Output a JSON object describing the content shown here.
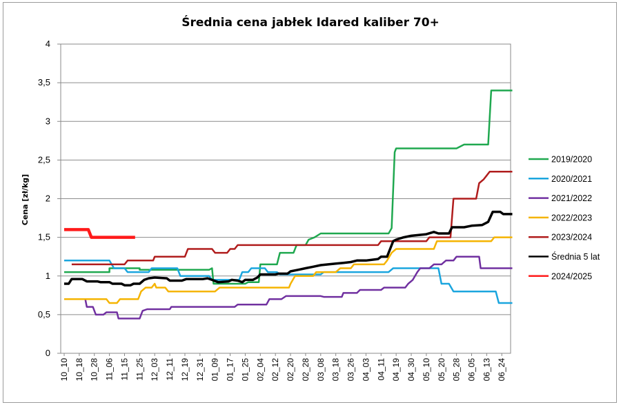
{
  "chart_data": {
    "type": "line",
    "title": "Średnia cena jabłek Idared kaliber 70+",
    "xlabel": "",
    "ylabel": "Cena [zł/kg]",
    "ylim": [
      0,
      4
    ],
    "yticks": [
      "0",
      "0,5",
      "1",
      "1,5",
      "2",
      "2,5",
      "3",
      "3,5",
      "4"
    ],
    "categories": [
      "10_10",
      "10_18",
      "10_28",
      "11_06",
      "11_15",
      "11_25",
      "12_03",
      "12_11",
      "12_19",
      "12_31",
      "01_09",
      "01_17",
      "01_25",
      "02_04",
      "02_12",
      "02_20",
      "02_28",
      "03_08",
      "03_18",
      "03_26",
      "04_03",
      "04_11",
      "04_19",
      "04_30",
      "05_10",
      "05_20",
      "05_28",
      "06_05",
      "06_13",
      "06_24"
    ],
    "grid": "horizontal",
    "legend_position": "right",
    "series": [
      {
        "name": "2019/2020",
        "color": "#1fa84f",
        "width": 2.5,
        "points": [
          [
            0,
            1.05
          ],
          [
            3,
            1.05
          ],
          [
            3,
            1.1
          ],
          [
            5,
            1.1
          ],
          [
            5,
            1.08
          ],
          [
            9.6,
            1.08
          ],
          [
            9.8,
            1.1
          ],
          [
            9.9,
            0.9
          ],
          [
            12,
            0.9
          ],
          [
            12.2,
            0.92
          ],
          [
            12.9,
            0.92
          ],
          [
            13,
            1.15
          ],
          [
            14.1,
            1.15
          ],
          [
            14.3,
            1.3
          ],
          [
            15.2,
            1.3
          ],
          [
            15.4,
            1.4
          ],
          [
            16,
            1.4
          ],
          [
            16.2,
            1.47
          ],
          [
            16.6,
            1.5
          ],
          [
            17,
            1.55
          ],
          [
            21.5,
            1.55
          ],
          [
            21.7,
            1.62
          ],
          [
            21.9,
            2.6
          ],
          [
            22,
            2.65
          ],
          [
            26,
            2.65
          ],
          [
            26.5,
            2.7
          ],
          [
            28.1,
            2.7
          ],
          [
            28.3,
            3.4
          ],
          [
            29.7,
            3.4
          ]
        ]
      },
      {
        "name": "2020/2021",
        "color": "#1aa5de",
        "width": 2.5,
        "points": [
          [
            0,
            1.2
          ],
          [
            3,
            1.2
          ],
          [
            3.3,
            1.1
          ],
          [
            4,
            1.1
          ],
          [
            4.2,
            1.05
          ],
          [
            5.6,
            1.05
          ],
          [
            5.8,
            1.1
          ],
          [
            7.5,
            1.1
          ],
          [
            7.7,
            1.0
          ],
          [
            9.6,
            1.0
          ],
          [
            9.8,
            0.95
          ],
          [
            11.6,
            0.95
          ],
          [
            11.8,
            1.05
          ],
          [
            12.2,
            1.05
          ],
          [
            12.4,
            1.1
          ],
          [
            13.3,
            1.1
          ],
          [
            13.5,
            1.05
          ],
          [
            14.1,
            1.05
          ],
          [
            14.3,
            1.02
          ],
          [
            17,
            1.02
          ],
          [
            17.2,
            1.05
          ],
          [
            21.5,
            1.05
          ],
          [
            21.8,
            1.1
          ],
          [
            24.8,
            1.1
          ],
          [
            25,
            0.9
          ],
          [
            25.5,
            0.9
          ],
          [
            25.8,
            0.8
          ],
          [
            28.6,
            0.8
          ],
          [
            28.8,
            0.65
          ],
          [
            29.7,
            0.65
          ]
        ]
      },
      {
        "name": "2021/2022",
        "color": "#7030a0",
        "width": 2.5,
        "points": [
          [
            1.4,
            0.7
          ],
          [
            1.5,
            0.6
          ],
          [
            1.9,
            0.6
          ],
          [
            2.1,
            0.5
          ],
          [
            2.6,
            0.5
          ],
          [
            2.8,
            0.53
          ],
          [
            3.5,
            0.53
          ],
          [
            3.6,
            0.45
          ],
          [
            5,
            0.45
          ],
          [
            5.2,
            0.55
          ],
          [
            5.5,
            0.57
          ],
          [
            7,
            0.57
          ],
          [
            7.1,
            0.6
          ],
          [
            11.3,
            0.6
          ],
          [
            11.5,
            0.63
          ],
          [
            13.4,
            0.63
          ],
          [
            13.6,
            0.7
          ],
          [
            14.4,
            0.7
          ],
          [
            14.7,
            0.74
          ],
          [
            17,
            0.74
          ],
          [
            17.2,
            0.73
          ],
          [
            18.4,
            0.73
          ],
          [
            18.5,
            0.78
          ],
          [
            19.4,
            0.78
          ],
          [
            19.6,
            0.82
          ],
          [
            21,
            0.82
          ],
          [
            21.2,
            0.85
          ],
          [
            22.6,
            0.85
          ],
          [
            22.8,
            0.9
          ],
          [
            23.1,
            0.95
          ],
          [
            23.4,
            1.05
          ],
          [
            23.6,
            1.1
          ],
          [
            24.2,
            1.1
          ],
          [
            24.5,
            1.15
          ],
          [
            25,
            1.15
          ],
          [
            25.3,
            1.2
          ],
          [
            25.8,
            1.2
          ],
          [
            26,
            1.25
          ],
          [
            27.5,
            1.25
          ],
          [
            27.6,
            1.1
          ],
          [
            29.7,
            1.1
          ]
        ]
      },
      {
        "name": "2022/2023",
        "color": "#f5b400",
        "width": 2.5,
        "points": [
          [
            0,
            0.7
          ],
          [
            2.8,
            0.7
          ],
          [
            3,
            0.65
          ],
          [
            3.5,
            0.65
          ],
          [
            3.7,
            0.7
          ],
          [
            4.9,
            0.7
          ],
          [
            5.1,
            0.8
          ],
          [
            5.4,
            0.85
          ],
          [
            5.8,
            0.85
          ],
          [
            6,
            0.9
          ],
          [
            6.1,
            0.85
          ],
          [
            6.7,
            0.85
          ],
          [
            6.9,
            0.8
          ],
          [
            10,
            0.8
          ],
          [
            10.3,
            0.85
          ],
          [
            14.9,
            0.85
          ],
          [
            15,
            0.9
          ],
          [
            15.3,
            1.0
          ],
          [
            16.5,
            1.0
          ],
          [
            16.7,
            1.05
          ],
          [
            18,
            1.05
          ],
          [
            18.3,
            1.1
          ],
          [
            19,
            1.1
          ],
          [
            19.2,
            1.15
          ],
          [
            21.2,
            1.15
          ],
          [
            21.4,
            1.2
          ],
          [
            21.7,
            1.3
          ],
          [
            22,
            1.35
          ],
          [
            24.5,
            1.35
          ],
          [
            24.7,
            1.45
          ],
          [
            28.3,
            1.45
          ],
          [
            28.5,
            1.5
          ],
          [
            29.7,
            1.5
          ]
        ]
      },
      {
        "name": "2023/2024",
        "color": "#b01c1c",
        "width": 2.5,
        "points": [
          [
            0.5,
            1.15
          ],
          [
            4,
            1.15
          ],
          [
            4.2,
            1.2
          ],
          [
            5.9,
            1.2
          ],
          [
            6,
            1.25
          ],
          [
            8,
            1.25
          ],
          [
            8.2,
            1.35
          ],
          [
            9.8,
            1.35
          ],
          [
            10,
            1.3
          ],
          [
            10.8,
            1.3
          ],
          [
            11,
            1.35
          ],
          [
            11.3,
            1.35
          ],
          [
            11.5,
            1.4
          ],
          [
            20.8,
            1.4
          ],
          [
            21,
            1.45
          ],
          [
            24,
            1.45
          ],
          [
            24.2,
            1.5
          ],
          [
            25.6,
            1.5
          ],
          [
            25.8,
            2.0
          ],
          [
            27.3,
            2.0
          ],
          [
            27.5,
            2.2
          ],
          [
            27.8,
            2.25
          ],
          [
            28,
            2.3
          ],
          [
            28.2,
            2.35
          ],
          [
            29.7,
            2.35
          ]
        ]
      },
      {
        "name": "Średnia 5 lat",
        "color": "#000000",
        "width": 3.5,
        "points": [
          [
            0,
            0.9
          ],
          [
            0.3,
            0.9
          ],
          [
            0.5,
            0.96
          ],
          [
            1.2,
            0.96
          ],
          [
            1.5,
            0.93
          ],
          [
            2.2,
            0.93
          ],
          [
            2.4,
            0.92
          ],
          [
            3,
            0.92
          ],
          [
            3.2,
            0.9
          ],
          [
            3.8,
            0.9
          ],
          [
            4,
            0.88
          ],
          [
            4.4,
            0.88
          ],
          [
            4.6,
            0.9
          ],
          [
            5,
            0.9
          ],
          [
            5.3,
            0.95
          ],
          [
            5.6,
            0.97
          ],
          [
            6,
            0.98
          ],
          [
            6.8,
            0.97
          ],
          [
            7,
            0.94
          ],
          [
            7.8,
            0.94
          ],
          [
            8.1,
            0.96
          ],
          [
            9.2,
            0.96
          ],
          [
            9.5,
            0.97
          ],
          [
            9.8,
            0.95
          ],
          [
            10.2,
            0.92
          ],
          [
            10.9,
            0.93
          ],
          [
            11.1,
            0.95
          ],
          [
            11.5,
            0.94
          ],
          [
            11.8,
            0.92
          ],
          [
            12,
            0.95
          ],
          [
            12.5,
            0.95
          ],
          [
            12.8,
            0.98
          ],
          [
            13,
            1.02
          ],
          [
            14,
            1.02
          ],
          [
            14.2,
            1.03
          ],
          [
            14.8,
            1.03
          ],
          [
            15,
            1.06
          ],
          [
            15.5,
            1.08
          ],
          [
            16,
            1.1
          ],
          [
            16.5,
            1.12
          ],
          [
            17,
            1.14
          ],
          [
            17.5,
            1.15
          ],
          [
            18,
            1.16
          ],
          [
            18.5,
            1.17
          ],
          [
            19,
            1.18
          ],
          [
            19.4,
            1.2
          ],
          [
            20,
            1.2
          ],
          [
            20.8,
            1.22
          ],
          [
            21,
            1.25
          ],
          [
            21.4,
            1.25
          ],
          [
            21.6,
            1.35
          ],
          [
            21.8,
            1.45
          ],
          [
            22,
            1.47
          ],
          [
            22.5,
            1.5
          ],
          [
            23,
            1.52
          ],
          [
            24,
            1.54
          ],
          [
            24.5,
            1.57
          ],
          [
            24.8,
            1.55
          ],
          [
            25.5,
            1.55
          ],
          [
            25.7,
            1.63
          ],
          [
            26.5,
            1.63
          ],
          [
            27,
            1.65
          ],
          [
            27.7,
            1.66
          ],
          [
            28.1,
            1.7
          ],
          [
            28.4,
            1.83
          ],
          [
            28.9,
            1.83
          ],
          [
            29.1,
            1.8
          ],
          [
            29.7,
            1.8
          ]
        ]
      },
      {
        "name": "2024/2025",
        "color": "#ff1a1a",
        "width": 4.5,
        "points": [
          [
            0,
            1.6
          ],
          [
            1.6,
            1.6
          ],
          [
            1.8,
            1.5
          ],
          [
            4.7,
            1.5
          ]
        ]
      }
    ]
  }
}
